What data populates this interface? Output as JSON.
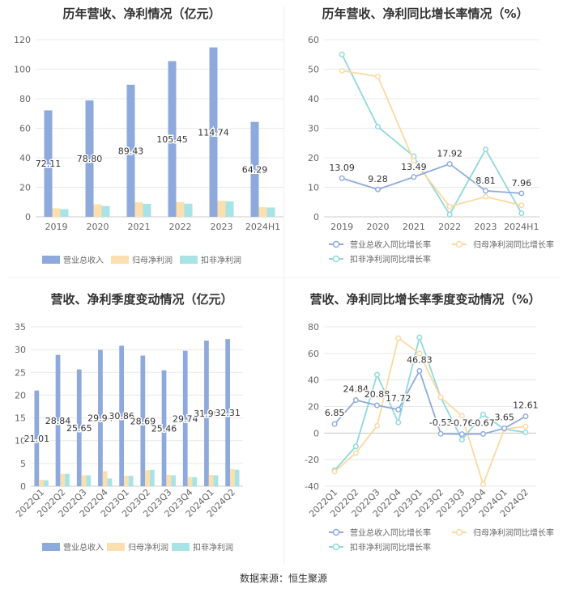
{
  "source_label": "数据来源：恒生聚源",
  "colors": {
    "revenue": "#8eaadd",
    "net_profit": "#fcdfae",
    "deducted_profit": "#a8e3e6",
    "revenue_line": "#8eaadd",
    "net_profit_line": "#fcd9a0",
    "deducted_line": "#8fd9dd",
    "grid": "#e8e8e8"
  },
  "chart_data": [
    {
      "id": "annual_bar",
      "type": "bar",
      "title": "历年营收、净利情况（亿元）",
      "categories": [
        "2019",
        "2020",
        "2021",
        "2022",
        "2023",
        "2024H1"
      ],
      "series": [
        {
          "name": "营业总收入",
          "values": [
            72.11,
            78.8,
            89.43,
            105.45,
            114.74,
            64.29
          ],
          "labels": [
            "72.11",
            "78.80",
            "89.43",
            "105.45",
            "114.74",
            "64.29"
          ]
        },
        {
          "name": "归母净利润",
          "values": [
            5.8,
            8.5,
            9.8,
            10.0,
            10.9,
            6.5
          ]
        },
        {
          "name": "扣非净利润",
          "values": [
            5.2,
            7.3,
            8.8,
            8.9,
            10.5,
            6.3
          ]
        }
      ],
      "yticks": [
        "0",
        "20",
        "40",
        "60",
        "80",
        "100",
        "120"
      ],
      "ylim": [
        0,
        120
      ],
      "legend": "bottom"
    },
    {
      "id": "annual_growth",
      "type": "line",
      "title": "历年营收、净利同比增长率情况（%）",
      "categories": [
        "2019",
        "2020",
        "2021",
        "2022",
        "2023",
        "2024H1"
      ],
      "series": [
        {
          "name": "营业总收入同比增长率",
          "values": [
            13.09,
            9.28,
            13.49,
            17.92,
            8.81,
            7.96
          ],
          "labels": [
            "13.09",
            "9.28",
            "13.49",
            "17.92",
            "8.81",
            "7.96"
          ]
        },
        {
          "name": "归母净利润同比增长率",
          "values": [
            49.5,
            47.5,
            19.0,
            3.5,
            6.8,
            3.9
          ]
        },
        {
          "name": "扣非净利润同比增长率",
          "values": [
            55.0,
            30.5,
            20.5,
            0.8,
            22.8,
            1.2
          ]
        }
      ],
      "yticks": [
        "0",
        "10",
        "20",
        "30",
        "40",
        "50",
        "60"
      ],
      "ylim": [
        0,
        60
      ],
      "legend": "bottom"
    },
    {
      "id": "quarterly_bar",
      "type": "bar",
      "title": "营收、净利季度变动情况（亿元）",
      "categories": [
        "2022Q1",
        "2022Q2",
        "2022Q3",
        "2022Q4",
        "2023Q1",
        "2023Q2",
        "2023Q3",
        "2023Q4",
        "2024Q1",
        "2024Q2"
      ],
      "series": [
        {
          "name": "营业总收入",
          "values": [
            21.01,
            28.84,
            25.65,
            29.94,
            30.86,
            28.69,
            25.46,
            29.74,
            31.98,
            32.31
          ],
          "labels": [
            "21.01",
            "28.84",
            "25.65",
            "29.94",
            "30.86",
            "28.69",
            "25.46",
            "29.74",
            "31.98",
            "32.31"
          ]
        },
        {
          "name": "归母净利润",
          "values": [
            1.4,
            2.7,
            2.4,
            3.3,
            2.3,
            3.5,
            2.5,
            2.0,
            2.5,
            3.8
          ]
        },
        {
          "name": "扣非净利润",
          "values": [
            1.3,
            2.7,
            2.4,
            1.7,
            2.3,
            3.6,
            2.4,
            2.0,
            2.4,
            3.6
          ]
        }
      ],
      "yticks": [
        "0",
        "5",
        "10",
        "15",
        "20",
        "25",
        "30",
        "35"
      ],
      "ylim": [
        0,
        35
      ],
      "legend": "bottom"
    },
    {
      "id": "quarterly_growth",
      "type": "line",
      "title": "营收、净利同比增长率季度变动情况（%）",
      "categories": [
        "2022Q1",
        "2022Q2",
        "2022Q3",
        "2022Q4",
        "2023Q1",
        "2023Q2",
        "2023Q3",
        "2023Q4",
        "2024Q1",
        "2024Q2"
      ],
      "series": [
        {
          "name": "营业总收入同比增长率",
          "values": [
            6.85,
            24.84,
            20.88,
            17.72,
            46.83,
            -0.53,
            -0.76,
            -0.67,
            3.65,
            12.61
          ],
          "labels": [
            "6.85",
            "24.84",
            "20.88",
            "17.72",
            "46.83",
            "-0.53",
            "-0.76",
            "-0.67",
            "3.65",
            "12.61"
          ]
        },
        {
          "name": "归母净利润同比增长率",
          "values": [
            -29.0,
            -15.0,
            5.5,
            71.5,
            60.0,
            27.0,
            13.0,
            -38.5,
            3.0,
            5.0
          ]
        },
        {
          "name": "扣非净利润同比增长率",
          "values": [
            -28.0,
            -10.0,
            44.0,
            8.0,
            72.0,
            27.0,
            -5.0,
            14.0,
            3.0,
            0.5
          ]
        }
      ],
      "yticks": [
        "-40",
        "-20",
        "0",
        "20",
        "40",
        "60",
        "80"
      ],
      "ylim": [
        -40,
        80
      ],
      "legend": "bottom"
    }
  ]
}
